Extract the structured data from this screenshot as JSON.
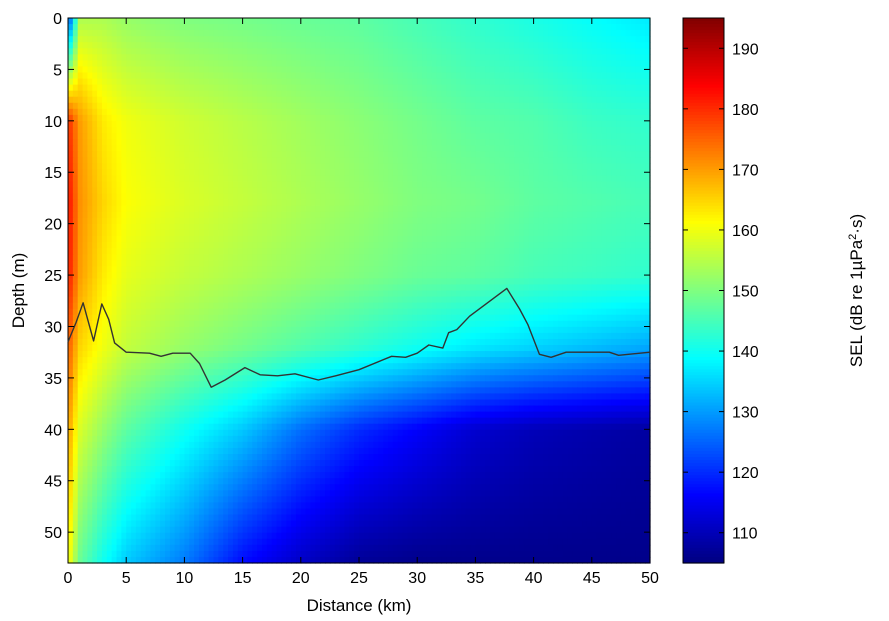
{
  "chart_data": {
    "type": "heatmap",
    "title": "",
    "xlabel": "Distance (km)",
    "ylabel": "Depth (m)",
    "xlim": [
      0,
      50
    ],
    "ylim": [
      0,
      53
    ],
    "y_axis_inverted": true,
    "xticks": [
      0,
      5,
      10,
      15,
      20,
      25,
      30,
      35,
      40,
      45,
      50
    ],
    "yticks": [
      0,
      5,
      10,
      15,
      20,
      25,
      30,
      35,
      40,
      45,
      50
    ],
    "colorbar": {
      "label": "SEL (dB re 1µPa²·s)",
      "label_parts": [
        "SEL (dB re 1µPa",
        "2",
        "·s)"
      ],
      "range": [
        105,
        195
      ],
      "ticks": [
        110,
        120,
        130,
        140,
        150,
        160,
        170,
        180,
        190
      ],
      "colormap": "jet"
    },
    "seabed_line": {
      "color": "#333333",
      "x": [
        0,
        0.7,
        1.3,
        2.2,
        2.9,
        3.5,
        4.0,
        5.0,
        7.0,
        8.0,
        9.0,
        10.5,
        11.3,
        12.3,
        13.5,
        15.2,
        16.5,
        18.0,
        19.5,
        21.5,
        23.0,
        25.0,
        27.8,
        29.0,
        30.0,
        31.0,
        32.2,
        32.7,
        33.4,
        34.5,
        37.7,
        38.8,
        39.5,
        40.5,
        41.5,
        42.8,
        46.5,
        47.3,
        50
      ],
      "y": [
        31.5,
        29.6,
        27.7,
        31.4,
        27.8,
        29.3,
        31.6,
        32.5,
        32.6,
        32.9,
        32.6,
        32.6,
        33.6,
        35.9,
        35.2,
        34.0,
        34.7,
        34.8,
        34.6,
        35.2,
        34.8,
        34.2,
        32.9,
        33.0,
        32.6,
        31.8,
        32.1,
        30.6,
        30.3,
        29.0,
        26.3,
        28.3,
        29.8,
        32.7,
        33.0,
        32.5,
        32.5,
        32.8,
        32.5
      ]
    },
    "sel_field_dB": {
      "x_km": [
        0,
        1,
        3,
        5,
        10,
        15,
        20,
        25,
        30,
        35,
        40,
        45,
        50
      ],
      "depth_m": [
        0,
        10,
        18,
        25,
        32,
        40,
        53
      ],
      "values": [
        [
          120,
          154,
          154,
          152,
          150,
          149,
          148,
          147,
          145,
          143,
          141,
          139,
          137
        ],
        [
          180,
          170,
          163,
          160,
          157,
          155,
          153,
          151,
          149,
          147,
          146,
          144,
          143
        ],
        [
          183,
          171,
          165,
          161,
          158,
          156,
          154,
          152,
          150,
          149,
          147,
          146,
          145
        ],
        [
          182,
          170,
          163,
          159,
          156,
          154,
          152,
          150,
          148,
          147,
          145,
          144,
          143
        ],
        [
          176,
          165,
          160,
          156,
          152,
          149,
          146,
          143,
          140,
          137,
          135,
          133,
          131
        ],
        [
          170,
          158,
          152,
          147,
          140,
          134,
          126,
          120,
          116,
          112,
          110,
          109,
          108
        ],
        [
          162,
          148,
          140,
          134,
          127,
          117,
          111,
          107,
          106,
          106,
          106,
          106,
          106
        ]
      ]
    }
  }
}
